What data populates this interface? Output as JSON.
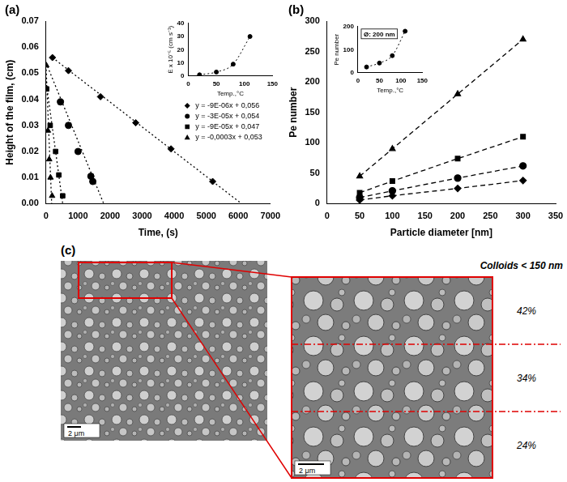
{
  "chart_data": [
    {
      "type": "scatter",
      "title": "(a)",
      "x_label": "Time, (s)",
      "y_label": "Height of the film, (cm)",
      "xlim": [
        0,
        7000
      ],
      "xticks": [
        0,
        1000,
        2000,
        3000,
        4000,
        5000,
        6000,
        7000
      ],
      "ylim": [
        0,
        0.07
      ],
      "yticks": [
        {
          "value": 0,
          "label": "0.00"
        },
        0.01,
        0.02,
        0.03,
        0.04,
        0.05,
        0.06,
        0.07
      ],
      "grid": false,
      "legend": "right",
      "series": [
        {
          "name": "y = -9E-06x + 0,056",
          "color": "#000000",
          "marker": "diamond",
          "line_style": "dotted",
          "x": [
            200,
            700,
            1700,
            2800,
            3900,
            5200
          ],
          "values": [
            0.056,
            0.051,
            0.041,
            0.031,
            0.021,
            0.0085
          ],
          "fit": {
            "x": [
              200,
              6100
            ],
            "values": [
              0.056,
              0
            ]
          }
        },
        {
          "name": "y = -3E-05x + 0,054",
          "color": "#000000",
          "marker": "circle",
          "line_style": "dotted",
          "x": [
            450,
            700,
            1000,
            1400,
            1460
          ],
          "values": [
            0.039,
            0.03,
            0.02,
            0.0105,
            0.0085
          ],
          "fit": {
            "x": [
              0,
              1800
            ],
            "values": [
              0.054,
              0
            ]
          }
        },
        {
          "name": "y = -9E-05x + 0,047",
          "color": "#000000",
          "marker": "square",
          "line_style": "dotted",
          "x": [
            20,
            130,
            300,
            400,
            520
          ],
          "values": [
            0.044,
            0.03,
            0.02,
            0.011,
            0.003
          ],
          "fit": {
            "x": [
              0,
              520
            ],
            "values": [
              0.047,
              0
            ]
          }
        },
        {
          "name": "y = -0,0003x + 0,053",
          "color": "#000000",
          "marker": "triangle",
          "line_style": "dotted",
          "x": [
            10,
            60,
            100,
            140,
            190
          ],
          "values": [
            0.053,
            0.028,
            0.017,
            0.01,
            0.003
          ],
          "fit": {
            "x": [
              0,
              177
            ],
            "values": [
              0.053,
              0
            ]
          }
        }
      ]
    },
    {
      "type": "scatter",
      "x_label": "Temp.,°C",
      "y_label": "Ė x 10⁻⁵ (cm s⁻¹)",
      "xlim": [
        0,
        150
      ],
      "xticks": [
        0,
        50,
        100,
        150
      ],
      "ylim": [
        0,
        40
      ],
      "yticks": [
        0,
        10,
        20,
        30,
        40
      ],
      "grid": false,
      "series": [
        {
          "color": "#000000",
          "marker": "circle",
          "line_style": "dotted",
          "x": [
            20,
            50,
            80,
            110
          ],
          "values": [
            0.9,
            3,
            9,
            30
          ]
        }
      ]
    },
    {
      "type": "scatter",
      "title": "(b)",
      "x_label": "Particle diameter [nm]",
      "y_label": "Pe number",
      "xlim": [
        0,
        350
      ],
      "xticks": [
        0,
        50,
        100,
        150,
        200,
        250,
        300,
        350
      ],
      "ylim": [
        0,
        300
      ],
      "yticks": [
        0,
        50,
        100,
        150,
        200,
        250,
        300
      ],
      "grid": false,
      "series": [
        {
          "color": "#000000",
          "marker": "diamond",
          "line_style": "dashed",
          "x": [
            50,
            100,
            200,
            300
          ],
          "values": [
            6,
            13,
            25,
            38
          ]
        },
        {
          "color": "#000000",
          "marker": "circle",
          "line_style": "dashed",
          "x": [
            50,
            100,
            200,
            300
          ],
          "values": [
            10,
            21,
            42,
            62
          ]
        },
        {
          "color": "#000000",
          "marker": "square",
          "line_style": "dashed",
          "x": [
            50,
            100,
            200,
            300
          ],
          "values": [
            18,
            37,
            74,
            110
          ]
        },
        {
          "color": "#000000",
          "marker": "triangle",
          "line_style": "dashed",
          "x": [
            50,
            100,
            200,
            300
          ],
          "values": [
            45,
            90,
            180,
            270
          ]
        }
      ]
    },
    {
      "type": "scatter",
      "x_label": "Temp.,°C",
      "y_label": "Pe number",
      "annotations": [
        "Ø: 200 nm"
      ],
      "xlim": [
        0,
        150
      ],
      "xticks": [
        0,
        50,
        100,
        150
      ],
      "ylim": [
        0,
        200
      ],
      "yticks": [
        0,
        100,
        200
      ],
      "grid": false,
      "series": [
        {
          "color": "#000000",
          "marker": "circle",
          "line_style": "dotted",
          "x": [
            20,
            50,
            80,
            110
          ],
          "values": [
            25,
            42,
            74,
            180
          ]
        }
      ]
    }
  ],
  "panel_c": {
    "label": "(c)",
    "scale_bars": [
      "2 μm",
      "2 μm"
    ],
    "zoom_heading": "Colloids < 150 nm",
    "zoom_layers": [
      "42%",
      "34%",
      "24%"
    ]
  }
}
